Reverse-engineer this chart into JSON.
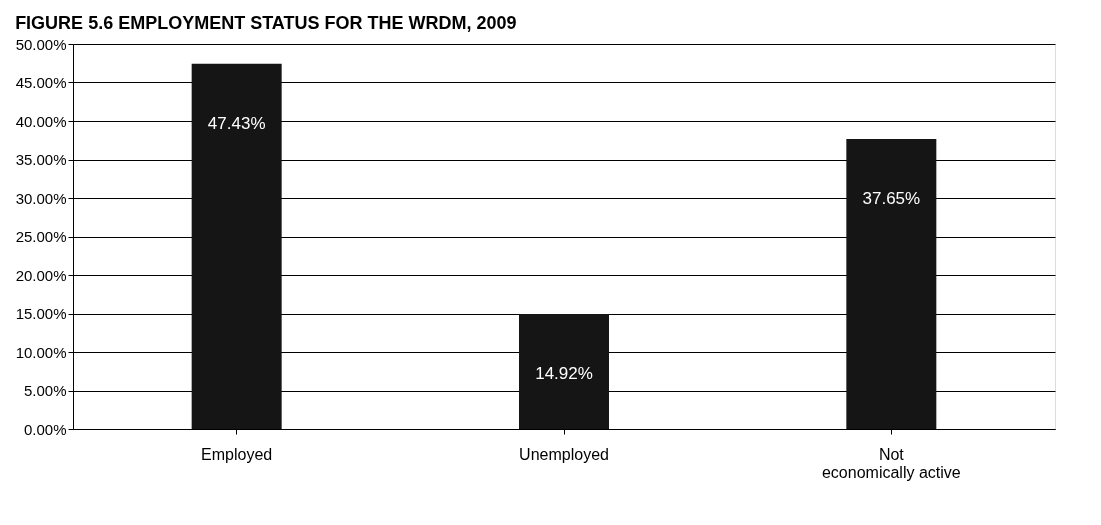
{
  "chart_data": {
    "type": "bar",
    "title": "FIGURE 5.6     EMPLOYMENT STATUS FOR THE WRDM, 2009",
    "categories": [
      "Employed",
      "Unemployed",
      "Not economically active"
    ],
    "values": [
      47.43,
      14.92,
      37.65
    ],
    "value_labels": [
      "47.43%",
      "14.92%",
      "37.65%"
    ],
    "color": "#151515",
    "ylim": [
      0,
      50
    ],
    "yticks": [
      {
        "value": 0,
        "label": "0.00%"
      },
      {
        "value": 5,
        "label": "5.00%"
      },
      {
        "value": 10,
        "label": "10.00%"
      },
      {
        "value": 15,
        "label": "15.00%"
      },
      {
        "value": 20,
        "label": "20.00%"
      },
      {
        "value": 25,
        "label": "25.00%"
      },
      {
        "value": 30,
        "label": "30.00%"
      },
      {
        "value": 35,
        "label": "35.00%"
      },
      {
        "value": 40,
        "label": "40.00%"
      },
      {
        "value": 45,
        "label": "45.00%"
      },
      {
        "value": 50,
        "label": "50.00%"
      }
    ],
    "grid": "y"
  }
}
